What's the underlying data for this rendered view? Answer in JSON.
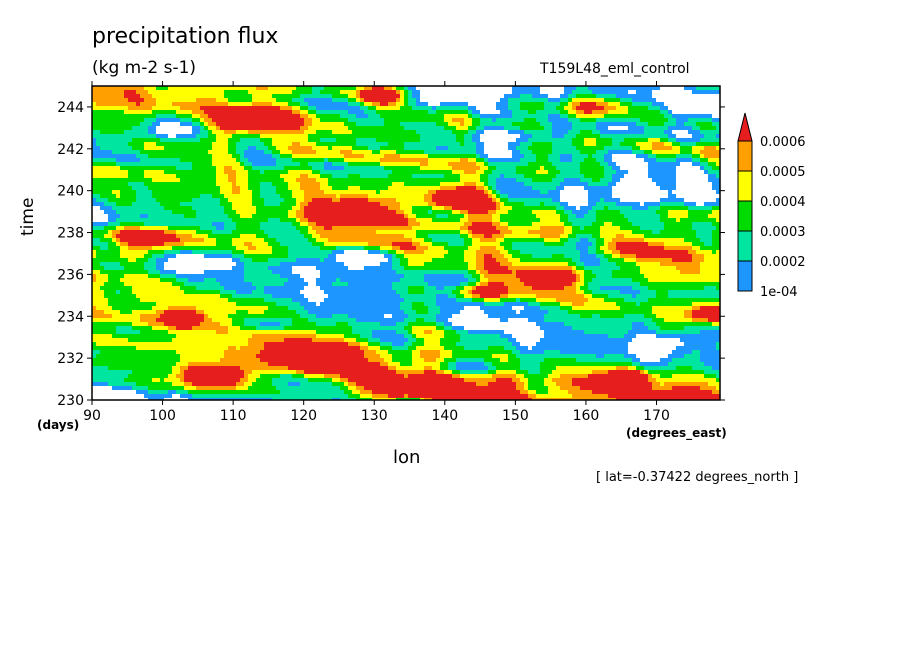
{
  "header": {
    "title": "precipitation flux",
    "units": "(kg m-2 s-1)",
    "run_name": "T159L48_eml_control",
    "lat_note": "[ lat=-0.37422 degrees_north ]"
  },
  "colors": {
    "bins": [
      "#ffffff",
      "#1e96ff",
      "#00e6a0",
      "#00dc00",
      "#ffff00",
      "#ffa000",
      "#e61e1e"
    ],
    "frame": "#000000"
  },
  "chart_data": {
    "type": "heatmap",
    "title": "precipitation flux",
    "units": "(kg m-2 s-1)",
    "xlabel": "lon",
    "xunit": "(degrees_east)",
    "ylabel": "time",
    "yunit": "(days)",
    "xlim": [
      90,
      179
    ],
    "ylim": [
      230,
      245
    ],
    "x_ticks": [
      90,
      100,
      110,
      120,
      130,
      140,
      150,
      160,
      170
    ],
    "y_ticks": [
      230,
      232,
      234,
      236,
      238,
      240,
      242,
      244
    ],
    "legend": {
      "position": "right",
      "levels": [
        "1e-04",
        "0.0002",
        "0.0003",
        "0.0004",
        "0.0005",
        "0.0006"
      ],
      "colors": [
        "#1e96ff",
        "#00e6a0",
        "#00dc00",
        "#ffff00",
        "#ffa000",
        "#e61e1e"
      ]
    },
    "bands": [
      {
        "x0": 90,
        "t0": 244.5,
        "x1": 179,
        "t1": 238.0,
        "width": 1.3,
        "amp": 0.00028
      },
      {
        "x0": 92,
        "t0": 241.0,
        "x1": 179,
        "t1": 236.3,
        "width": 1.1,
        "amp": 0.0003
      },
      {
        "x0": 90,
        "t0": 235.5,
        "x1": 150,
        "t1": 230.0,
        "width": 1.2,
        "amp": 0.00034
      },
      {
        "x0": 115,
        "t0": 244.8,
        "x1": 179,
        "t1": 241.5,
        "width": 0.9,
        "amp": 0.00022
      },
      {
        "x0": 130,
        "t0": 237.5,
        "x1": 179,
        "t1": 233.5,
        "width": 1.0,
        "amp": 0.00026
      },
      {
        "x0": 90,
        "t0": 232.5,
        "x1": 179,
        "t1": 230.0,
        "width": 1.4,
        "amp": 0.00022
      }
    ],
    "blobs": [
      {
        "x": 112,
        "t": 243.3,
        "rx": 5,
        "rt": 0.6,
        "amp": 0.0007
      },
      {
        "x": 122,
        "t": 232.0,
        "rx": 3,
        "rt": 0.45,
        "amp": 0.00075
      },
      {
        "x": 108,
        "t": 231.2,
        "rx": 6,
        "rt": 0.6,
        "amp": 0.00062
      },
      {
        "x": 127,
        "t": 239.0,
        "rx": 6,
        "rt": 0.6,
        "amp": 0.00058
      },
      {
        "x": 145,
        "t": 235.1,
        "rx": 4,
        "rt": 0.5,
        "amp": 0.00058
      },
      {
        "x": 131,
        "t": 244.5,
        "rx": 4,
        "rt": 0.5,
        "amp": 0.00052
      },
      {
        "x": 103,
        "t": 234.0,
        "rx": 3,
        "rt": 0.4,
        "amp": 0.0005
      },
      {
        "x": 178,
        "t": 234.2,
        "rx": 3,
        "rt": 0.5,
        "amp": 0.00052
      },
      {
        "x": 166,
        "t": 231.1,
        "rx": 4,
        "rt": 0.4,
        "amp": 0.00048
      },
      {
        "x": 155,
        "t": 235.8,
        "rx": 4,
        "rt": 0.5,
        "amp": 0.00046
      },
      {
        "x": 161,
        "t": 244.0,
        "rx": 5,
        "rt": 0.6,
        "amp": 0.00044
      },
      {
        "x": 98,
        "t": 237.8,
        "rx": 5,
        "rt": 0.6,
        "amp": 0.0004
      },
      {
        "x": 142,
        "t": 239.6,
        "rx": 4,
        "rt": 0.5,
        "amp": 0.00048
      },
      {
        "x": 135,
        "t": 230.5,
        "rx": 5,
        "rt": 0.5,
        "amp": 0.00046
      }
    ],
    "dry": [
      {
        "x": 165,
        "t": 239.8,
        "rx": 14,
        "rt": 1.1
      },
      {
        "x": 100,
        "t": 242.8,
        "rx": 6,
        "rt": 0.5
      },
      {
        "x": 150,
        "t": 242.6,
        "rx": 8,
        "rt": 0.5
      },
      {
        "x": 104,
        "t": 236.6,
        "rx": 6,
        "rt": 0.6
      },
      {
        "x": 138,
        "t": 244.4,
        "rx": 9,
        "rt": 0.5
      },
      {
        "x": 115,
        "t": 233.6,
        "rx": 5,
        "rt": 0.5
      },
      {
        "x": 142,
        "t": 231.5,
        "rx": 7,
        "rt": 0.5
      },
      {
        "x": 173,
        "t": 232.8,
        "rx": 6,
        "rt": 0.5
      },
      {
        "x": 160,
        "t": 237.6,
        "rx": 6,
        "rt": 0.5
      },
      {
        "x": 128,
        "t": 236.8,
        "rx": 6,
        "rt": 0.5
      }
    ]
  }
}
